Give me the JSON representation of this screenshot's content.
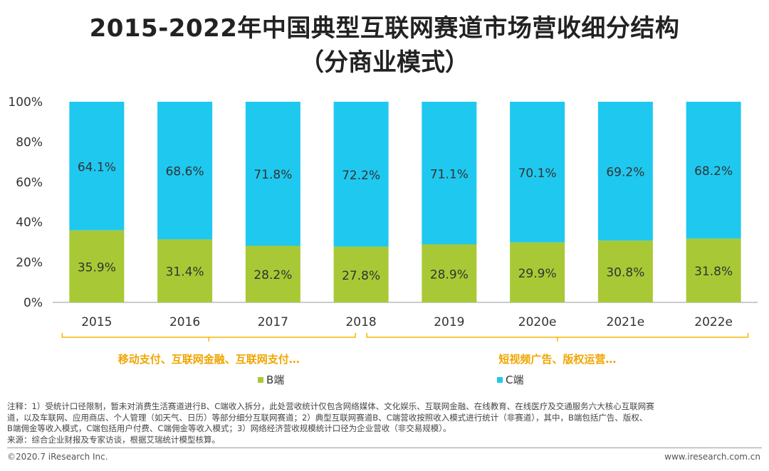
{
  "title_line1": "2015-2022年中国典型互联网赛道市场营收细分结构",
  "title_line2": "（分商业模式）",
  "colors": {
    "b_end": "#a8c935",
    "c_end": "#1fc8ef",
    "bracket": "#f5b800",
    "bracket_text": "#f0a500"
  },
  "chart_data": {
    "type": "bar",
    "stacked": true,
    "categories": [
      "2015",
      "2016",
      "2017",
      "2018",
      "2019",
      "2020e",
      "2021e",
      "2022e"
    ],
    "series": [
      {
        "name": "B端",
        "values": [
          35.9,
          31.4,
          28.2,
          27.8,
          28.9,
          29.9,
          30.8,
          31.8
        ],
        "labels": [
          "35.9%",
          "31.4%",
          "28.2%",
          "27.8%",
          "28.9%",
          "29.9%",
          "30.8%",
          "31.8%"
        ]
      },
      {
        "name": "C端",
        "values": [
          64.1,
          68.6,
          71.8,
          72.2,
          71.1,
          70.1,
          69.2,
          68.2
        ],
        "labels": [
          "64.1%",
          "68.6%",
          "71.8%",
          "72.2%",
          "71.1%",
          "70.1%",
          "69.2%",
          "68.2%"
        ]
      }
    ],
    "ylim": [
      0,
      100
    ],
    "yticks": [
      "0%",
      "20%",
      "40%",
      "60%",
      "80%",
      "100%"
    ],
    "grid": false,
    "legend_position": "bottom",
    "annotations": [
      {
        "text": "移动支付、互联网金融、互联网支付…",
        "from": "2015",
        "to": "2018"
      },
      {
        "text": "短视频广告、版权运营…",
        "from": "2018",
        "to": "2022e"
      }
    ]
  },
  "legend": {
    "b_label": "B端",
    "c_label": "C端"
  },
  "notes": {
    "line1": "注释：1）受统计口径限制，暂未对消费生活赛道进行B、C端收入拆分，此处营收统计仅包含网络媒体、文化娱乐、互联网金融、在线教育、在线医疗及交通服务六大核心互联网赛",
    "line2": "道，以及车联网、应用商店、个人管理（如天气、日历）等部分细分互联网赛道；2）典型互联网赛道B、C端营收按照收入模式进行统计（非赛道），其中，B端包括广告、版权、",
    "line3": "B端佣金等收入模式，C端包括用户付费、C端佣金等收入模式；3）网络经济营收规模统计口径为企业营收（非交易规模）。",
    "line4": "来源：综合企业财报及专家访谈，根据艾瑞统计模型核算。"
  },
  "footer": {
    "copyright": "©2020.7 iResearch Inc.",
    "website": "www.iresearch.com.cn"
  }
}
